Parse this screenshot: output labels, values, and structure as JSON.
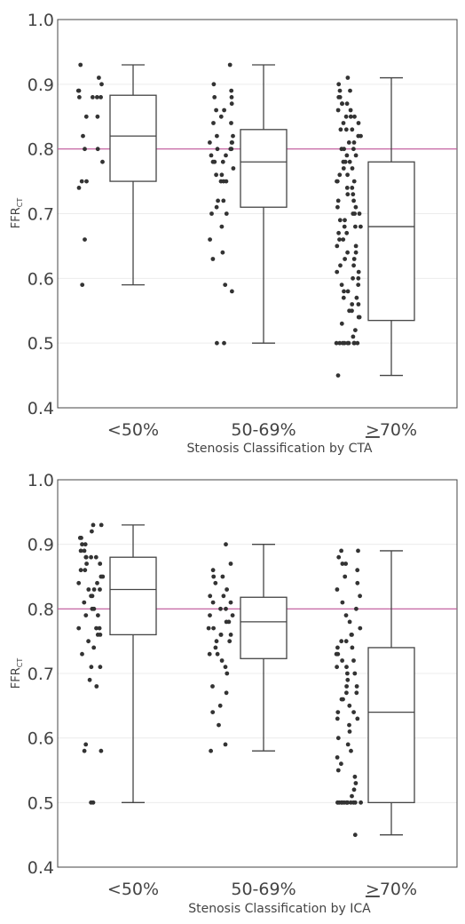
{
  "chart_data": [
    {
      "type": "box",
      "xlabel": "Stenosis Classification by CTA",
      "ylabel": "FFR",
      "ylabel_subscript": "CT",
      "categories": [
        "<50%",
        "50-69%",
        "≥70%"
      ],
      "ylim": [
        0.4,
        1.0
      ],
      "yticks": [
        "0.4",
        "0.5",
        "0.6",
        "0.7",
        "0.8",
        "0.9",
        "1.0"
      ],
      "reference_line": {
        "y": 0.8,
        "color": "#c0559a"
      },
      "grid": true,
      "boxes": [
        {
          "category": "<50%",
          "min": 0.59,
          "q1": 0.75,
          "median": 0.82,
          "q3": 0.883,
          "max": 0.93
        },
        {
          "category": "50-69%",
          "min": 0.5,
          "q1": 0.71,
          "median": 0.78,
          "q3": 0.83,
          "max": 0.93
        },
        {
          "category": "≥70%",
          "min": 0.45,
          "q1": 0.535,
          "median": 0.68,
          "q3": 0.78,
          "max": 0.91
        }
      ],
      "points": [
        [
          0.93,
          0.91,
          0.9,
          0.89,
          0.89,
          0.88,
          0.88,
          0.88,
          0.88,
          0.85,
          0.85,
          0.82,
          0.8,
          0.8,
          0.78,
          0.75,
          0.75,
          0.74,
          0.66,
          0.59
        ],
        [
          0.93,
          0.9,
          0.89,
          0.88,
          0.88,
          0.87,
          0.86,
          0.86,
          0.85,
          0.84,
          0.84,
          0.82,
          0.82,
          0.81,
          0.81,
          0.81,
          0.8,
          0.8,
          0.8,
          0.79,
          0.79,
          0.78,
          0.78,
          0.78,
          0.77,
          0.76,
          0.76,
          0.75,
          0.75,
          0.75,
          0.72,
          0.72,
          0.71,
          0.7,
          0.7,
          0.68,
          0.66,
          0.64,
          0.63,
          0.59,
          0.58,
          0.5,
          0.5
        ],
        [
          0.91,
          0.9,
          0.89,
          0.89,
          0.88,
          0.88,
          0.87,
          0.87,
          0.87,
          0.86,
          0.86,
          0.85,
          0.85,
          0.85,
          0.84,
          0.84,
          0.83,
          0.83,
          0.83,
          0.82,
          0.82,
          0.81,
          0.81,
          0.8,
          0.8,
          0.8,
          0.79,
          0.79,
          0.78,
          0.78,
          0.78,
          0.77,
          0.77,
          0.76,
          0.76,
          0.75,
          0.75,
          0.75,
          0.74,
          0.74,
          0.73,
          0.73,
          0.72,
          0.72,
          0.71,
          0.71,
          0.7,
          0.7,
          0.7,
          0.69,
          0.69,
          0.68,
          0.68,
          0.68,
          0.67,
          0.67,
          0.66,
          0.66,
          0.65,
          0.65,
          0.64,
          0.64,
          0.63,
          0.63,
          0.62,
          0.62,
          0.61,
          0.61,
          0.6,
          0.6,
          0.59,
          0.59,
          0.58,
          0.58,
          0.57,
          0.57,
          0.56,
          0.56,
          0.55,
          0.55,
          0.54,
          0.54,
          0.53,
          0.52,
          0.51,
          0.5,
          0.5,
          0.5,
          0.5,
          0.5,
          0.5,
          0.5,
          0.5,
          0.5,
          0.5,
          0.45
        ]
      ]
    },
    {
      "type": "box",
      "xlabel": "Stenosis Classification by ICA",
      "ylabel": "FFR",
      "ylabel_subscript": "CT",
      "categories": [
        "<50%",
        "50-69%",
        "≥70%"
      ],
      "ylim": [
        0.4,
        1.0
      ],
      "yticks": [
        "0.4",
        "0.5",
        "0.6",
        "0.7",
        "0.8",
        "0.9",
        "1.0"
      ],
      "reference_line": {
        "y": 0.8,
        "color": "#c0559a"
      },
      "grid": true,
      "boxes": [
        {
          "category": "<50%",
          "min": 0.5,
          "q1": 0.76,
          "median": 0.83,
          "q3": 0.88,
          "max": 0.93
        },
        {
          "category": "50-69%",
          "min": 0.58,
          "q1": 0.723,
          "median": 0.78,
          "q3": 0.818,
          "max": 0.9
        },
        {
          "category": "≥70%",
          "min": 0.45,
          "q1": 0.5,
          "median": 0.64,
          "q3": 0.74,
          "max": 0.89
        }
      ],
      "points": [
        [
          0.93,
          0.93,
          0.92,
          0.91,
          0.91,
          0.9,
          0.9,
          0.89,
          0.89,
          0.88,
          0.88,
          0.88,
          0.88,
          0.87,
          0.87,
          0.86,
          0.86,
          0.85,
          0.85,
          0.84,
          0.84,
          0.83,
          0.83,
          0.83,
          0.82,
          0.82,
          0.81,
          0.8,
          0.8,
          0.79,
          0.79,
          0.77,
          0.77,
          0.77,
          0.76,
          0.76,
          0.75,
          0.74,
          0.73,
          0.71,
          0.71,
          0.69,
          0.68,
          0.59,
          0.58,
          0.58,
          0.5,
          0.5
        ],
        [
          0.9,
          0.87,
          0.86,
          0.85,
          0.85,
          0.84,
          0.83,
          0.82,
          0.82,
          0.81,
          0.81,
          0.8,
          0.8,
          0.79,
          0.79,
          0.78,
          0.78,
          0.77,
          0.77,
          0.76,
          0.76,
          0.76,
          0.75,
          0.75,
          0.74,
          0.73,
          0.73,
          0.72,
          0.71,
          0.7,
          0.68,
          0.67,
          0.65,
          0.64,
          0.62,
          0.59,
          0.58
        ],
        [
          0.89,
          0.89,
          0.88,
          0.87,
          0.87,
          0.86,
          0.85,
          0.84,
          0.83,
          0.82,
          0.81,
          0.8,
          0.79,
          0.78,
          0.77,
          0.76,
          0.76,
          0.75,
          0.75,
          0.74,
          0.74,
          0.73,
          0.73,
          0.72,
          0.72,
          0.71,
          0.71,
          0.7,
          0.7,
          0.69,
          0.68,
          0.68,
          0.67,
          0.67,
          0.66,
          0.66,
          0.65,
          0.64,
          0.64,
          0.63,
          0.63,
          0.62,
          0.61,
          0.6,
          0.59,
          0.58,
          0.57,
          0.56,
          0.55,
          0.54,
          0.53,
          0.52,
          0.51,
          0.5,
          0.5,
          0.5,
          0.5,
          0.5,
          0.5,
          0.5,
          0.5,
          0.5,
          0.5,
          0.5,
          0.5,
          0.45
        ]
      ]
    }
  ]
}
